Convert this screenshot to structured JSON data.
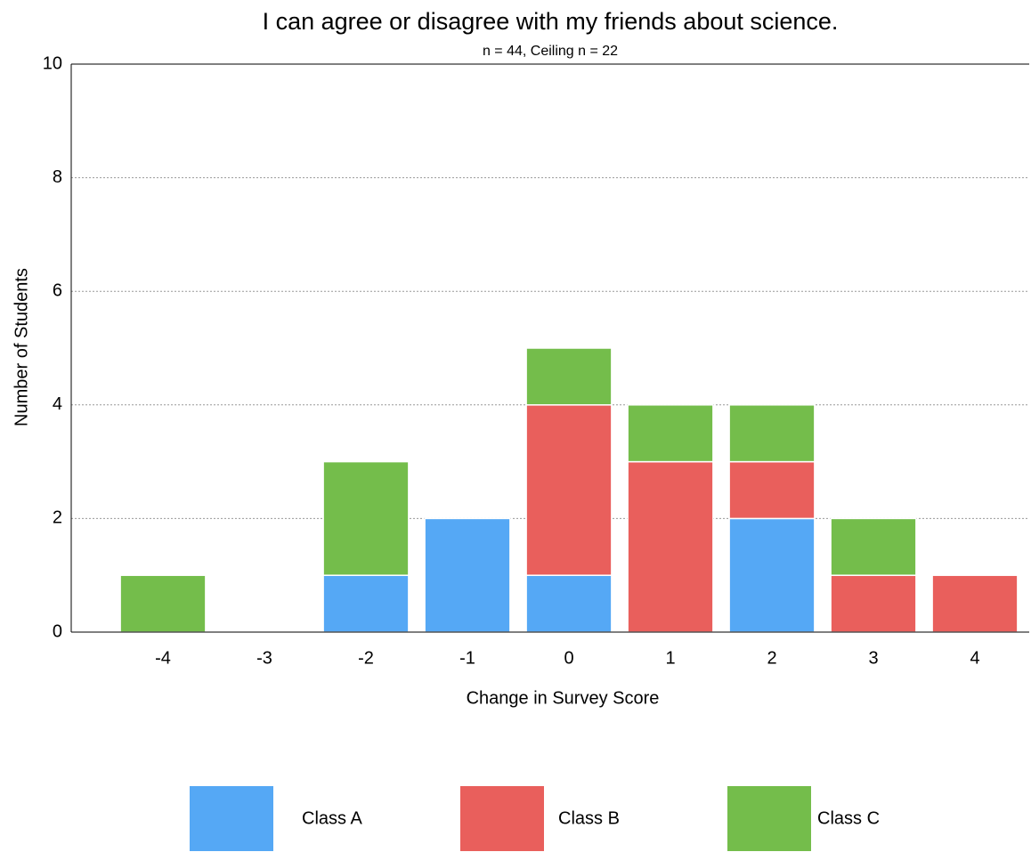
{
  "chart_data": {
    "type": "stacked-bar",
    "title": "I can agree or disagree with my friends about science.",
    "subtitle": "n = 44, Ceiling n = 22",
    "x_label": "Change in Survey Score",
    "y_label": "Number of Students",
    "categories": [
      "-4",
      "-3",
      "-2",
      "-1",
      "0",
      "1",
      "2",
      "3",
      "4"
    ],
    "series": [
      {
        "name": "Class A",
        "color": "#55a8f5",
        "values": [
          0,
          0,
          1,
          2,
          1,
          0,
          2,
          0,
          0
        ]
      },
      {
        "name": "Class B",
        "color": "#e95f5c",
        "values": [
          0,
          0,
          0,
          0,
          3,
          3,
          1,
          1,
          1
        ]
      },
      {
        "name": "Class C",
        "color": "#74bd4b",
        "values": [
          1,
          0,
          2,
          0,
          1,
          1,
          1,
          1,
          0
        ]
      }
    ],
    "ylim": [
      0,
      10
    ],
    "yticks": [
      0,
      2,
      4,
      6,
      8,
      10
    ],
    "grid": true,
    "legend": "bottom"
  }
}
